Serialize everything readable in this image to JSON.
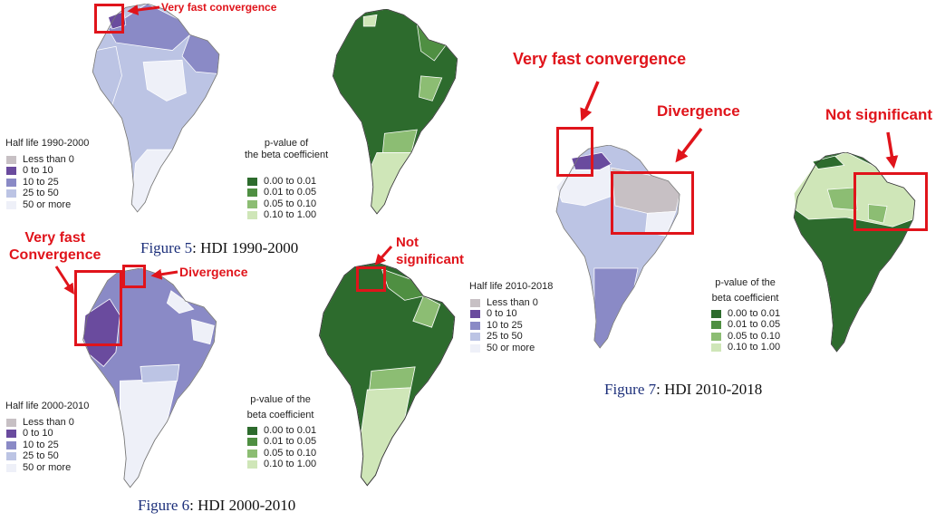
{
  "colors": {
    "less_than_0": "#c7c0c4",
    "hl_0_10": "#6a4b9e",
    "hl_10_25": "#8a8ac6",
    "hl_25_50": "#bcc4e4",
    "hl_50_more": "#eef0f8",
    "p_000_001": "#2d6b2d",
    "p_001_005": "#4f8f42",
    "p_005_010": "#8cbd73",
    "p_010_100": "#cfe6b8",
    "annotation_red": "#e0141b",
    "figure_label_blue": "#1c2f7a"
  },
  "icons": {
    "annotation_arrow": "red-arrow-icon"
  },
  "figures": {
    "fig5": {
      "caption_prefix": "Figure 5",
      "caption_rest": ": HDI 1990-2000",
      "halflife_legend": {
        "title": "Half life 1990-2000",
        "items": [
          {
            "label": "Less than 0",
            "color": "#c7c0c4"
          },
          {
            "label": "0 to 10",
            "color": "#6a4b9e"
          },
          {
            "label": "10 to 25",
            "color": "#8a8ac6"
          },
          {
            "label": "25 to 50",
            "color": "#bcc4e4"
          },
          {
            "label": "50 or more",
            "color": "#eef0f8"
          }
        ]
      },
      "pvalue_legend": {
        "title_line1": "p-value of",
        "title_line2": "the beta coefficient",
        "items": [
          {
            "label": "0.00 to 0.01",
            "color": "#2d6b2d"
          },
          {
            "label": "0.01 to 0.05",
            "color": "#4f8f42"
          },
          {
            "label": "0.05 to 0.10",
            "color": "#8cbd73"
          },
          {
            "label": "0.10 to 1.00",
            "color": "#cfe6b8"
          }
        ]
      },
      "annotations": {
        "very_fast": "Very fast convergence"
      }
    },
    "fig6": {
      "caption_prefix": "Figure 6",
      "caption_rest": ": HDI 2000-2010",
      "halflife_legend": {
        "title": "Half life 2000-2010",
        "items": [
          {
            "label": "Less than 0",
            "color": "#c7c0c4"
          },
          {
            "label": "0 to 10",
            "color": "#6a4b9e"
          },
          {
            "label": "10 to 25",
            "color": "#8a8ac6"
          },
          {
            "label": "25 to 50",
            "color": "#bcc4e4"
          },
          {
            "label": "50 or more",
            "color": "#eef0f8"
          }
        ]
      },
      "pvalue_legend": {
        "title_line1": "p-value of the",
        "title_line2": "beta coefficient",
        "items": [
          {
            "label": "0.00 to 0.01",
            "color": "#2d6b2d"
          },
          {
            "label": "0.01 to 0.05",
            "color": "#4f8f42"
          },
          {
            "label": "0.05 to 0.10",
            "color": "#8cbd73"
          },
          {
            "label": "0.10 to 1.00",
            "color": "#cfe6b8"
          }
        ]
      },
      "annotations": {
        "very_fast_line1": "Very fast",
        "very_fast_line2": "Convergence",
        "divergence": "Divergence",
        "not_sig_line1": "Not",
        "not_sig_line2": "significant"
      }
    },
    "fig7": {
      "caption_prefix": "Figure 7",
      "caption_rest": ": HDI 2010-2018",
      "halflife_legend": {
        "title": "Half life 2010-2018",
        "items": [
          {
            "label": "Less than 0",
            "color": "#c7c0c4"
          },
          {
            "label": "0 to 10",
            "color": "#6a4b9e"
          },
          {
            "label": "10 to 25",
            "color": "#8a8ac6"
          },
          {
            "label": "25 to 50",
            "color": "#bcc4e4"
          },
          {
            "label": "50 or more",
            "color": "#eef0f8"
          }
        ]
      },
      "pvalue_legend": {
        "title_line1": "p-value of the",
        "title_line2": "beta coefficient",
        "items": [
          {
            "label": "0.00 to 0.01",
            "color": "#2d6b2d"
          },
          {
            "label": "0.01 to 0.05",
            "color": "#4f8f42"
          },
          {
            "label": "0.05 to 0.10",
            "color": "#8cbd73"
          },
          {
            "label": "0.10 to 1.00",
            "color": "#cfe6b8"
          }
        ]
      },
      "annotations": {
        "very_fast": "Very fast convergence",
        "divergence": "Divergence",
        "not_significant": "Not significant"
      }
    }
  }
}
